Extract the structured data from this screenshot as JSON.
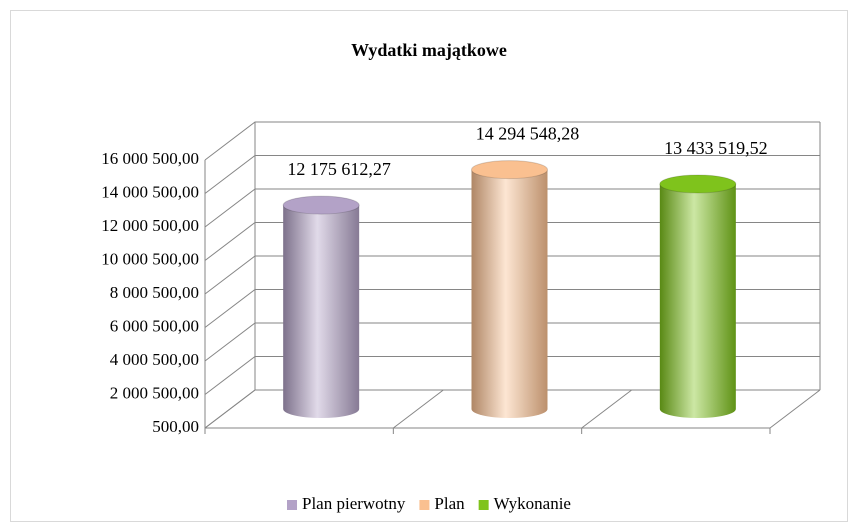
{
  "chart_data": {
    "type": "bar3d-cylinder",
    "title": "Wydatki majątkowe",
    "categories": [
      null
    ],
    "series": [
      {
        "name": "Plan pierwotny",
        "color": "#b3a2c7",
        "values": [
          12175612.27
        ],
        "value_labels": [
          "12 175 612,27"
        ]
      },
      {
        "name": "Plan",
        "color": "#fac090",
        "values": [
          14294548.28
        ],
        "value_labels": [
          "14 294 548,28"
        ]
      },
      {
        "name": "Wykonanie",
        "color": "#7fc31c",
        "values": [
          13433519.52
        ],
        "value_labels": [
          "13 433 519,52"
        ]
      }
    ],
    "ylim": [
      500,
      16000500
    ],
    "yticks": [
      {
        "value": 500,
        "label": "500,00"
      },
      {
        "value": 2000500,
        "label": "2 000 500,00"
      },
      {
        "value": 4000500,
        "label": "4 000 500,00"
      },
      {
        "value": 6000500,
        "label": "6 000 500,00"
      },
      {
        "value": 8000500,
        "label": "8 000 500,00"
      },
      {
        "value": 10000500,
        "label": "10 000 500,00"
      },
      {
        "value": 12000500,
        "label": "12 000 500,00"
      },
      {
        "value": 14000500,
        "label": "14 000 500,00"
      },
      {
        "value": 16000500,
        "label": "16 000 500,00"
      }
    ],
    "grid": true,
    "legend": "bottom"
  }
}
